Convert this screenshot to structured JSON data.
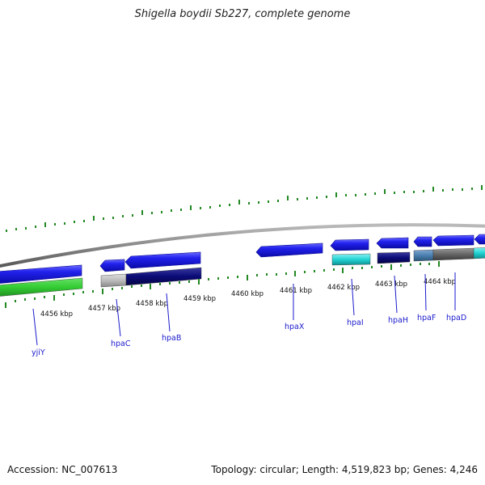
{
  "title": "Shigella boydii Sb227, complete genome",
  "footer": {
    "accession": "Accession: NC_007613",
    "summary": "Topology: circular; Length: 4,519,823 bp; Genes: 4,246"
  },
  "scale_ticks": [
    "4456 kbp",
    "4457 kbp",
    "4458 kbp",
    "4459 kbp",
    "4460 kbp",
    "4461 kbp",
    "4462 kbp",
    "4463 kbp",
    "4464 kbp"
  ],
  "genes": [
    "yjiY",
    "hpaC",
    "hpaB",
    "hpaX",
    "hpaI",
    "hpaH",
    "hpaF",
    "hpaD"
  ],
  "colors": {
    "gene_strand": "#1f1fee",
    "backbone": "#888888",
    "tick": "#228822",
    "label_line": "#1a1acc",
    "cog_green": "#33cc33",
    "cog_gray": "#bbbbbb",
    "cog_navy": "#0b0b77",
    "cog_cyan": "#22d3d3",
    "cog_steel": "#4a7fb0",
    "cog_darkgray": "#666666"
  }
}
